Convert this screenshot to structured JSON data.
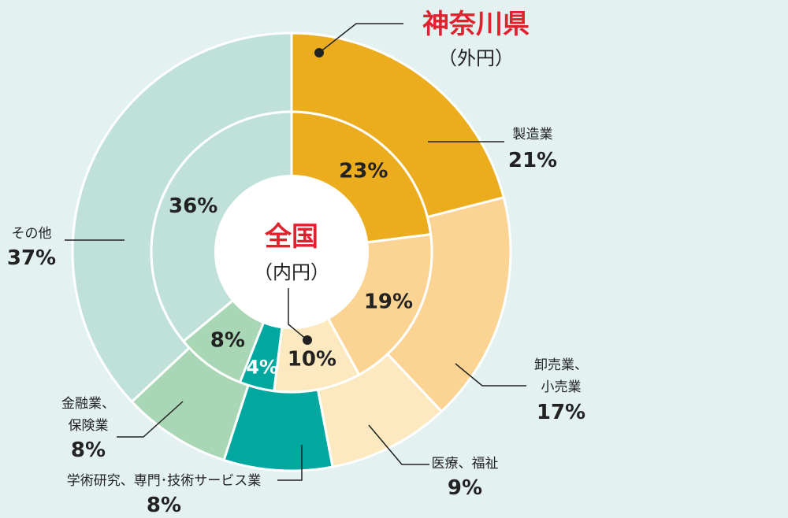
{
  "chart_data": {
    "type": "pie",
    "outer": {
      "title": "神奈川県",
      "subtitle": "（外円）",
      "slices": [
        {
          "label": "製造業",
          "value": 21,
          "text": "21%",
          "color": "#ebad1e"
        },
        {
          "label": "卸売業、小売業",
          "value": 17,
          "text": "17%",
          "color": "#fbd393"
        },
        {
          "label": "医療、福祉",
          "value": 9,
          "text": "9%",
          "color": "#fde9c0"
        },
        {
          "label": "学術研究、専門･技術サービス業",
          "value": 8,
          "text": "8%",
          "color": "#00a8a0"
        },
        {
          "label": "金融業、保険業",
          "value": 8,
          "text": "8%",
          "color": "#a9d6b5"
        },
        {
          "label": "その他",
          "value": 37,
          "text": "37%",
          "color": "#bfe1d9"
        }
      ]
    },
    "inner": {
      "title": "全国",
      "subtitle": "（内円）",
      "slices": [
        {
          "label": "製造業",
          "value": 23,
          "text": "23%",
          "color": "#ebad1e"
        },
        {
          "label": "卸売業、小売業",
          "value": 19,
          "text": "19%",
          "color": "#fbd393"
        },
        {
          "label": "医療、福祉",
          "value": 10,
          "text": "10%",
          "color": "#fde9c0"
        },
        {
          "label": "学術研究、専門･技術サービス業",
          "value": 4,
          "text": "4%",
          "color": "#00a8a0"
        },
        {
          "label": "金融業、保険業",
          "value": 8,
          "text": "8%",
          "color": "#a9d6b5"
        },
        {
          "label": "その他",
          "value": 36,
          "text": "36%",
          "color": "#bfe1d9"
        }
      ]
    }
  },
  "labels": {
    "manufacturing": {
      "name": "製造業",
      "value": "21%"
    },
    "wholesale": {
      "line1": "卸売業、",
      "line2": "小売業",
      "value": "17%"
    },
    "medical": {
      "name": "医療、福祉",
      "value": "9%"
    },
    "research": {
      "name": "学術研究、専門･技術サービス業",
      "value": "8%"
    },
    "finance": {
      "line1": "金融業、",
      "line2": "保険業",
      "value": "8%"
    },
    "other": {
      "name": "その他",
      "value": "37%"
    }
  }
}
